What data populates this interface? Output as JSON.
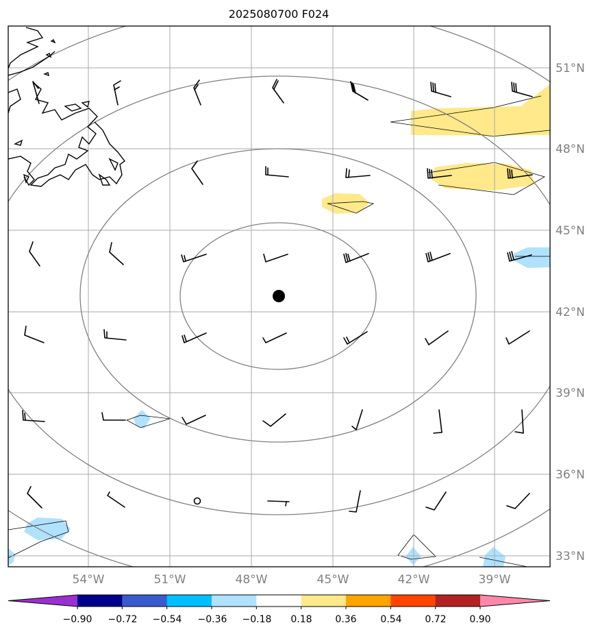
{
  "title": "2025080700 F024",
  "lon_ticks": [
    "54°W",
    "51°W",
    "48°W",
    "45°W",
    "42°W",
    "39°W"
  ],
  "lat_ticks": [
    "51°N",
    "48°N",
    "45°N",
    "42°N",
    "39°N",
    "36°N",
    "33°N"
  ],
  "colorbar": {
    "colors": [
      "#9b30d0",
      "#00008b",
      "#3a5bcc",
      "#00bfff",
      "#b0e2ff",
      "#ffffff",
      "#ffe98a",
      "#ffa500",
      "#ff4500",
      "#b22222",
      "#ff88aa"
    ],
    "labels": [
      "−0.90",
      "−0.72",
      "−0.54",
      "−0.36",
      "−0.18",
      "0.18",
      "0.36",
      "0.54",
      "0.72",
      "0.90"
    ]
  },
  "map": {
    "center_marker": "storm-center",
    "range_rings": 4,
    "style": {
      "coast": "#000000",
      "grid": "#999999",
      "ring": "#808080",
      "positive_fill": "#ffe98a",
      "negative_fill": "#b0e2ff"
    }
  }
}
